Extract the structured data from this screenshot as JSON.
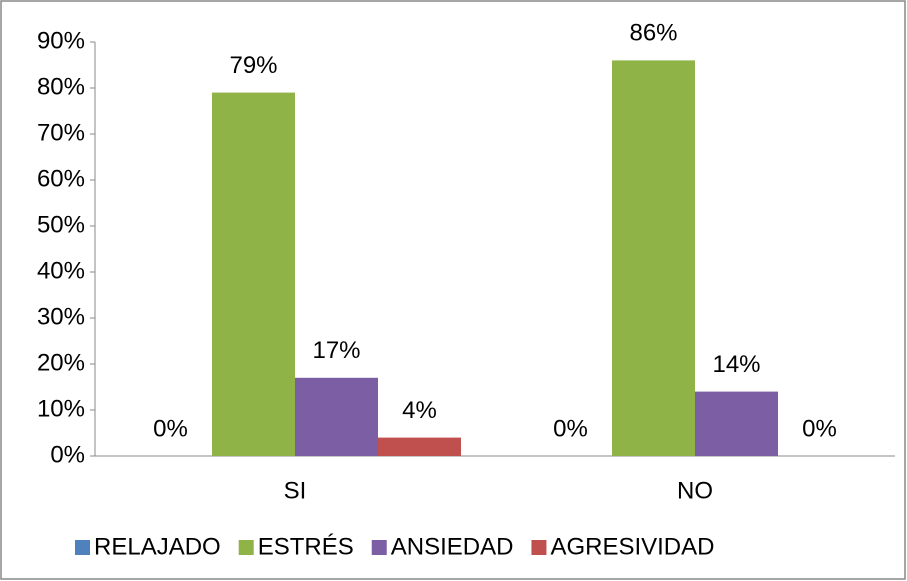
{
  "chart_data": {
    "type": "bar",
    "categories": [
      "SI",
      "NO"
    ],
    "series": [
      {
        "name": "RELAJADO",
        "color": "#4f81bd",
        "values": [
          0,
          0
        ],
        "value_labels": [
          "0%",
          "0%"
        ]
      },
      {
        "name": "ESTRÉS",
        "color": "#8fb347",
        "values": [
          79,
          86
        ],
        "value_labels": [
          "79%",
          "86%"
        ]
      },
      {
        "name": "ANSIEDAD",
        "color": "#7b5ea3",
        "values": [
          17,
          14
        ],
        "value_labels": [
          "17%",
          "14%"
        ]
      },
      {
        "name": "AGRESIVIDAD",
        "color": "#c0504d",
        "values": [
          4,
          0
        ],
        "value_labels": [
          "4%",
          "0%"
        ]
      }
    ],
    "ylim": [
      0,
      90
    ],
    "yticks": [
      {
        "value": 0,
        "label": "0%"
      },
      {
        "value": 10,
        "label": "10%"
      },
      {
        "value": 20,
        "label": "20%"
      },
      {
        "value": 30,
        "label": "30%"
      },
      {
        "value": 40,
        "label": "40%"
      },
      {
        "value": 50,
        "label": "50%"
      },
      {
        "value": 60,
        "label": "60%"
      },
      {
        "value": 70,
        "label": "70%"
      },
      {
        "value": 80,
        "label": "80%"
      },
      {
        "value": 90,
        "label": "90%"
      }
    ],
    "grid": false,
    "legend": "bottom"
  }
}
